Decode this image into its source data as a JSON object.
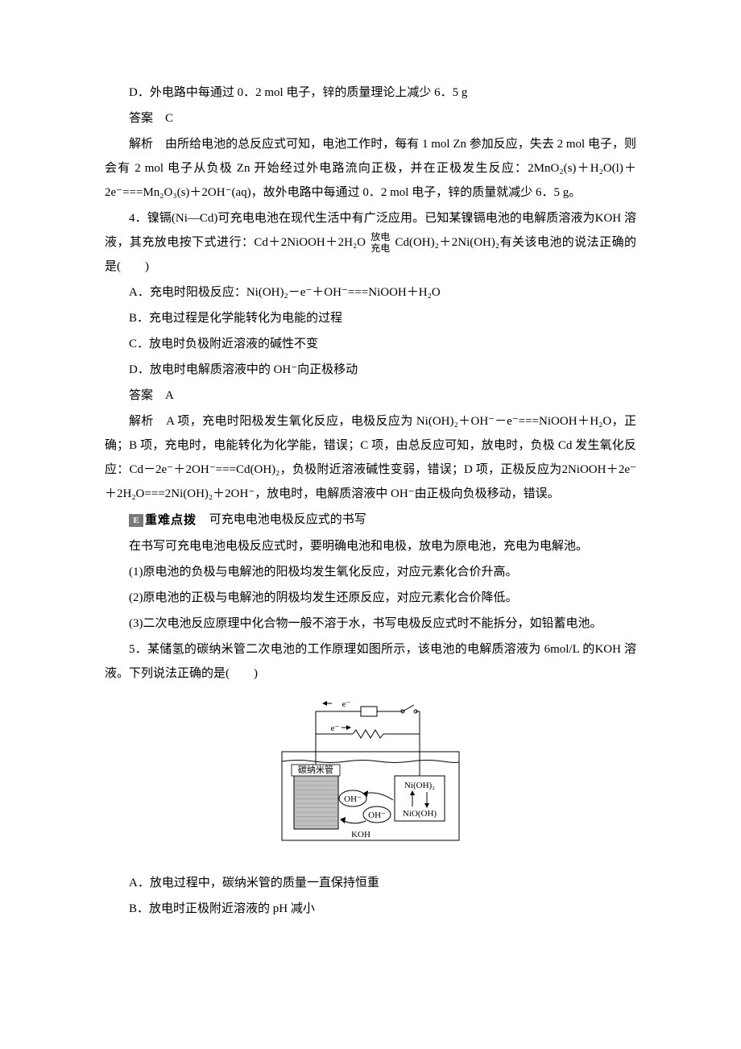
{
  "intro": {
    "optionD": "D．外电路中每通过 0．2 mol 电子，锌的质量理论上减少 6．5 g",
    "answerLabel": "答案　C",
    "explain": "解析　由所给电池的总反应式可知，电池工作时，每有 1 mol Zn 参加反应，失去 2 mol 电子，则会有 2 mol 电子从负极 Zn 开始经过外电路流向正极，并在正极发生反应：2MnO₂(s)＋H₂O(l)＋2e⁻===Mn₂O₃(s)＋2OH⁻(aq)，故外电路中每通过 0．2 mol 电子，锌的质量就减少 6．5 g。"
  },
  "q4": {
    "stem_pre": "4．镍镉(Ni—Cd)可充电电池在现代生活中有广泛应用。已知某镍镉电池的电解质溶液为KOH 溶液，其充放电按下式进行：Cd＋2NiOOH＋2H₂O",
    "stack_top": "放电",
    "stack_bot": "充电",
    "stem_post": "Cd(OH)₂＋2Ni(OH)₂有关该电池的说法正确的是(　　)",
    "optionA": "A．充电时阳极反应：Ni(OH)₂－e⁻＋OH⁻===NiOOH＋H₂O",
    "optionB": "B．充电过程是化学能转化为电能的过程",
    "optionC": "C．放电时负极附近溶液的碱性不变",
    "optionD": "D．放电时电解质溶液中的 OH⁻向正极移动",
    "answerLabel": "答案　A",
    "explain": "解析　A 项，充电时阳极发生氧化反应，电极反应为 Ni(OH)₂＋OH⁻－e⁻===NiOOH＋H₂O，正确；B 项，充电时，电能转化为化学能，错误；C 项，由总反应可知，放电时，负极 Cd 发生氧化反应：Cd－2e⁻＋2OH⁻===Cd(OH)₂，负极附近溶液碱性变弱，错误；D 项，正极反应为2NiOOH＋2e⁻＋2H₂O===2Ni(OH)₂＋2OH⁻，放电时，电解质溶液中 OH⁻由正极向负极移动，错误。"
  },
  "note": {
    "iconText": "E",
    "label": "重难点拨",
    "title": "可充电电池电极反应式的书写",
    "line1": "在书写可充电电池电极反应式时，要明确电池和电极，放电为原电池，充电为电解池。",
    "line2": "(1)原电池的负极与电解池的阳极均发生氧化反应，对应元素化合价升高。",
    "line3": "(2)原电池的正极与电解池的阴极均发生还原反应，对应元素化合价降低。",
    "line4": "(3)二次电池反应原理中化合物一般不溶于水，书写电极反应式时不能拆分，如铅蓄电池。"
  },
  "q5": {
    "stem": "5．某储氢的碳纳米管二次电池的工作原理如图所示，该电池的电解质溶液为 6mol/L 的KOH 溶液。下列说法正确的是(　　)",
    "optionA": "A．放电过程中，碳纳米管的质量一直保持恒重",
    "optionB": "B．放电时正极附近溶液的 pH 减小"
  },
  "diagram": {
    "e_top": "e⁻",
    "e_bot": "e⁻",
    "carbon_tube": "碳纳米管",
    "oh_left": "OH⁻",
    "oh_right": "OH⁻",
    "nioh2": "Ni(OH)₂",
    "niooh": "NiO(OH)",
    "koh": "KOH",
    "box_fill": "#c0c0c0",
    "line_color": "#000000",
    "bg": "#ffffff",
    "font_size": 11
  }
}
